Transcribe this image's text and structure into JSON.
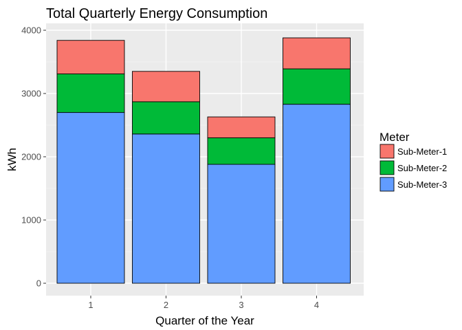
{
  "chart_data": {
    "type": "bar",
    "stacked": true,
    "title": "Total Quarterly Energy Consumption",
    "xlabel": "Quarter of the Year",
    "ylabel": "kWh",
    "categories": [
      "1",
      "2",
      "3",
      "4"
    ],
    "series": [
      {
        "name": "Sub-Meter-3",
        "color": "#619CFF",
        "values": [
          2700,
          2360,
          1880,
          2830
        ]
      },
      {
        "name": "Sub-Meter-2",
        "color": "#00BA38",
        "values": [
          610,
          510,
          420,
          560
        ]
      },
      {
        "name": "Sub-Meter-1",
        "color": "#F8766D",
        "values": [
          530,
          480,
          330,
          490
        ]
      }
    ],
    "ylim": [
      0,
      4000
    ],
    "yticks": [
      "0",
      "1000",
      "2000",
      "3000",
      "4000"
    ],
    "grid": true,
    "legend": {
      "title": "Meter",
      "placement": "right",
      "entries": [
        "Sub-Meter-1",
        "Sub-Meter-2",
        "Sub-Meter-3"
      ]
    }
  }
}
